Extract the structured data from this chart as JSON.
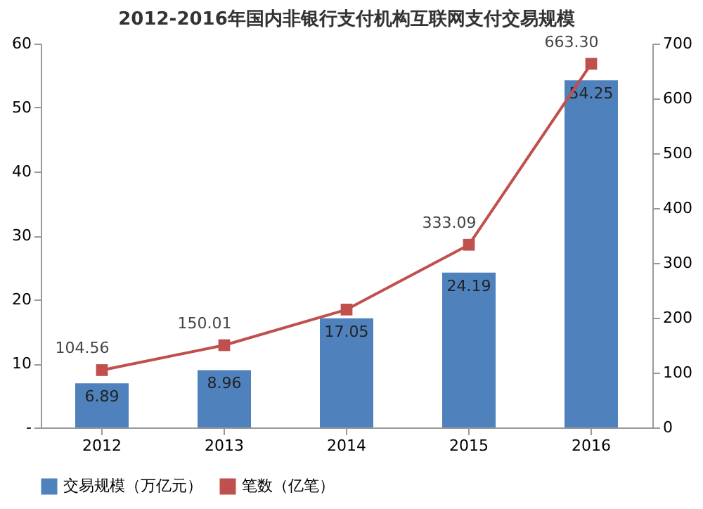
{
  "chart_data": {
    "type": "bar",
    "title": "2012-2016年国内非银行支付机构互联网支付交易规模",
    "categories": [
      "2012",
      "2013",
      "2014",
      "2015",
      "2016"
    ],
    "series": [
      {
        "name": "交易规模（万亿元）",
        "color": "#4f81bd",
        "values": [
          6.89,
          8.96,
          17.05,
          24.19,
          54.25
        ],
        "value_labels": [
          "6.89",
          "8.96",
          "17.05",
          "24.19",
          "54.25"
        ]
      },
      {
        "name": "笔数（亿笔）",
        "type": "line",
        "axis": "y2",
        "color": "#c0504d",
        "marker": "square",
        "values": [
          104.56,
          150.01,
          215,
          333.09,
          663.3
        ],
        "value_labels": [
          "104.56",
          "150.01",
          null,
          "333.09",
          "663.30"
        ]
      }
    ],
    "ylim": [
      0,
      60
    ],
    "yticks": [
      {
        "value": 0,
        "label": "-"
      },
      10,
      20,
      30,
      40,
      50,
      60
    ],
    "y2lim": [
      0,
      700
    ],
    "y2ticks": [
      0,
      100,
      200,
      300,
      400,
      500,
      600,
      700
    ],
    "grid": false,
    "legend": "bottom"
  }
}
